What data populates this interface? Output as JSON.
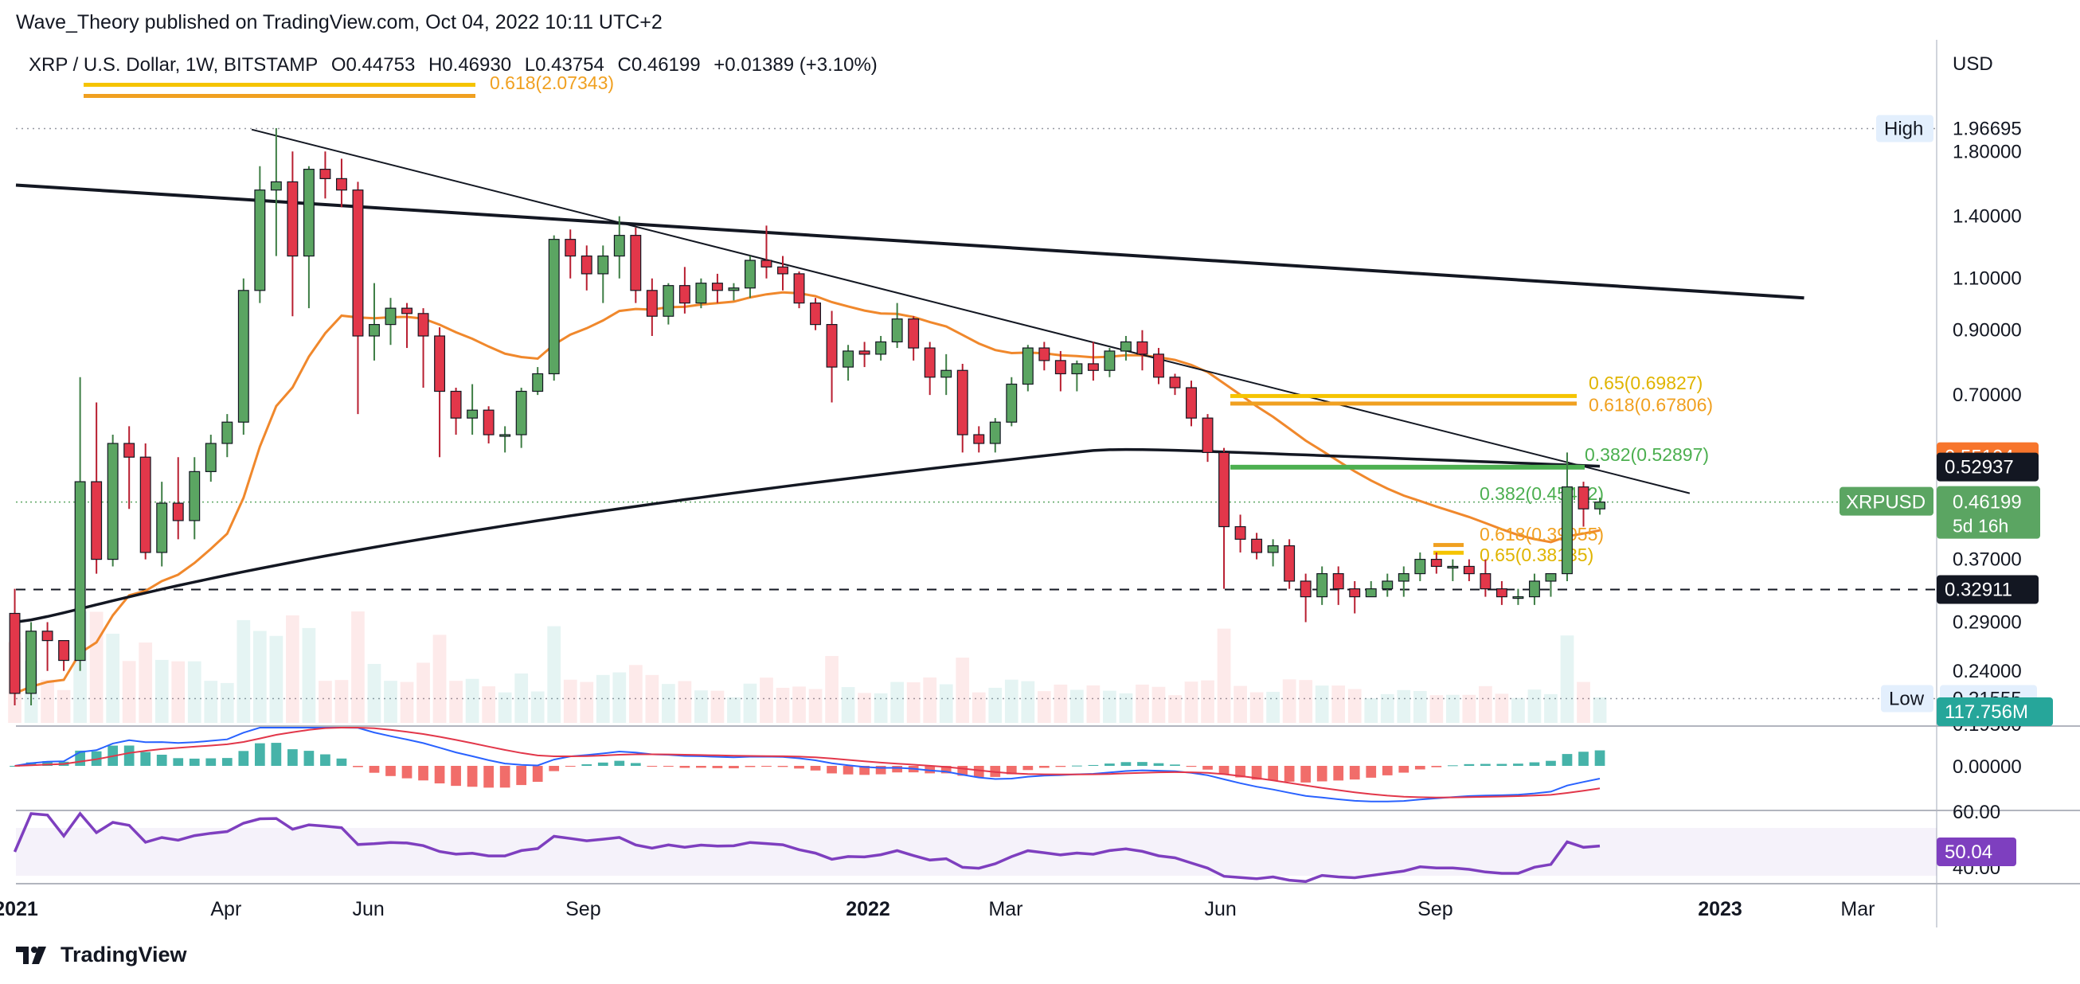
{
  "publisher": "Wave_Theory published on TradingView.com, Oct 04, 2022 10:11 UTC+2",
  "brand": "TradingView",
  "colors": {
    "up": "#5ba562",
    "down": "#e2374a",
    "ema": "#f0882c",
    "sma": "#131722",
    "fib_gold": "#f5c400",
    "fib_orange": "#f0a020",
    "fib_green": "#4caf50",
    "rsi": "#7e3fbf",
    "macd": "#2962ff",
    "signal": "#e2374a"
  },
  "chart_data": {
    "type": "candlestick",
    "symbol": "XRP / U.S. Dollar, 1W, BITSTAMP",
    "ohlc_header": {
      "o": "O0.44753",
      "h": "H0.46930",
      "l": "L0.43754",
      "c": "C0.46199",
      "chg": "+0.01389 (+3.10%)"
    },
    "currency": "USD",
    "scale": "log",
    "ylim": [
      0.195,
      2.25
    ],
    "price_ticks": [
      "1.80000",
      "1.40000",
      "1.10000",
      "0.90000",
      "0.70000",
      "0.37000",
      "0.29000",
      "0.24000",
      "0.19500"
    ],
    "time_labels": [
      {
        "label": "2021",
        "date": "2021-01-01"
      },
      {
        "label": "Apr",
        "date": "2021-04-01"
      },
      {
        "label": "Jun",
        "date": "2021-06-01"
      },
      {
        "label": "Sep",
        "date": "2021-09-01"
      },
      {
        "label": "2022",
        "date": "2022-01-01"
      },
      {
        "label": "Mar",
        "date": "2022-03-01"
      },
      {
        "label": "Jun",
        "date": "2022-06-01"
      },
      {
        "label": "Sep",
        "date": "2022-09-01"
      },
      {
        "label": "2023",
        "date": "2023-01-01"
      },
      {
        "label": "Mar",
        "date": "2023-03-01"
      }
    ],
    "start_week": "2020-12-28",
    "candles": [
      [
        0.3,
        0.33,
        0.21,
        0.22
      ],
      [
        0.22,
        0.29,
        0.21,
        0.28
      ],
      [
        0.28,
        0.29,
        0.24,
        0.27
      ],
      [
        0.27,
        0.27,
        0.24,
        0.25
      ],
      [
        0.25,
        0.75,
        0.24,
        0.5
      ],
      [
        0.5,
        0.68,
        0.35,
        0.37
      ],
      [
        0.37,
        0.6,
        0.36,
        0.58
      ],
      [
        0.58,
        0.62,
        0.45,
        0.55
      ],
      [
        0.55,
        0.58,
        0.37,
        0.38
      ],
      [
        0.38,
        0.5,
        0.36,
        0.46
      ],
      [
        0.46,
        0.55,
        0.4,
        0.43
      ],
      [
        0.43,
        0.55,
        0.4,
        0.52
      ],
      [
        0.52,
        0.6,
        0.5,
        0.58
      ],
      [
        0.58,
        0.65,
        0.55,
        0.63
      ],
      [
        0.63,
        1.1,
        0.6,
        1.05
      ],
      [
        1.05,
        1.7,
        1.0,
        1.55
      ],
      [
        1.55,
        1.97,
        1.2,
        1.6
      ],
      [
        1.6,
        1.8,
        0.95,
        1.2
      ],
      [
        1.2,
        1.7,
        0.98,
        1.68
      ],
      [
        1.68,
        1.8,
        1.5,
        1.62
      ],
      [
        1.62,
        1.75,
        1.45,
        1.55
      ],
      [
        1.55,
        1.6,
        0.65,
        0.88
      ],
      [
        0.88,
        1.08,
        0.8,
        0.92
      ],
      [
        0.92,
        1.02,
        0.85,
        0.98
      ],
      [
        0.98,
        1.0,
        0.84,
        0.96
      ],
      [
        0.96,
        0.98,
        0.72,
        0.88
      ],
      [
        0.88,
        0.91,
        0.55,
        0.71
      ],
      [
        0.71,
        0.72,
        0.6,
        0.64
      ],
      [
        0.64,
        0.73,
        0.6,
        0.66
      ],
      [
        0.66,
        0.67,
        0.58,
        0.6
      ],
      [
        0.6,
        0.62,
        0.56,
        0.6
      ],
      [
        0.6,
        0.72,
        0.57,
        0.71
      ],
      [
        0.71,
        0.78,
        0.7,
        0.76
      ],
      [
        0.76,
        1.3,
        0.74,
        1.28
      ],
      [
        1.28,
        1.33,
        1.1,
        1.2
      ],
      [
        1.2,
        1.25,
        1.05,
        1.12
      ],
      [
        1.12,
        1.25,
        1.0,
        1.2
      ],
      [
        1.2,
        1.4,
        1.1,
        1.3
      ],
      [
        1.3,
        1.34,
        1.0,
        1.05
      ],
      [
        1.05,
        1.1,
        0.88,
        0.95
      ],
      [
        0.95,
        1.08,
        0.92,
        1.07
      ],
      [
        1.07,
        1.15,
        0.96,
        1.0
      ],
      [
        1.0,
        1.1,
        0.98,
        1.08
      ],
      [
        1.08,
        1.12,
        1.0,
        1.05
      ],
      [
        1.05,
        1.08,
        1.01,
        1.06
      ],
      [
        1.06,
        1.2,
        1.02,
        1.18
      ],
      [
        1.18,
        1.35,
        1.1,
        1.15
      ],
      [
        1.15,
        1.2,
        1.05,
        1.12
      ],
      [
        1.12,
        1.13,
        0.98,
        1.0
      ],
      [
        1.0,
        1.02,
        0.9,
        0.92
      ],
      [
        0.92,
        0.97,
        0.68,
        0.78
      ],
      [
        0.78,
        0.85,
        0.74,
        0.83
      ],
      [
        0.83,
        0.86,
        0.78,
        0.82
      ],
      [
        0.82,
        0.88,
        0.8,
        0.86
      ],
      [
        0.86,
        1.0,
        0.84,
        0.94
      ],
      [
        0.94,
        0.95,
        0.8,
        0.84
      ],
      [
        0.84,
        0.86,
        0.7,
        0.75
      ],
      [
        0.75,
        0.82,
        0.7,
        0.77
      ],
      [
        0.77,
        0.79,
        0.56,
        0.6
      ],
      [
        0.6,
        0.62,
        0.56,
        0.58
      ],
      [
        0.58,
        0.64,
        0.56,
        0.63
      ],
      [
        0.63,
        0.75,
        0.62,
        0.73
      ],
      [
        0.73,
        0.85,
        0.71,
        0.84
      ],
      [
        0.84,
        0.86,
        0.77,
        0.8
      ],
      [
        0.8,
        0.83,
        0.71,
        0.76
      ],
      [
        0.76,
        0.8,
        0.71,
        0.79
      ],
      [
        0.79,
        0.86,
        0.74,
        0.77
      ],
      [
        0.77,
        0.84,
        0.75,
        0.83
      ],
      [
        0.83,
        0.88,
        0.8,
        0.86
      ],
      [
        0.86,
        0.9,
        0.77,
        0.82
      ],
      [
        0.82,
        0.84,
        0.73,
        0.75
      ],
      [
        0.75,
        0.76,
        0.7,
        0.72
      ],
      [
        0.72,
        0.74,
        0.62,
        0.64
      ],
      [
        0.64,
        0.65,
        0.54,
        0.56
      ],
      [
        0.56,
        0.57,
        0.33,
        0.42
      ],
      [
        0.42,
        0.44,
        0.38,
        0.4
      ],
      [
        0.4,
        0.41,
        0.37,
        0.38
      ],
      [
        0.38,
        0.4,
        0.36,
        0.39
      ],
      [
        0.39,
        0.4,
        0.33,
        0.34
      ],
      [
        0.34,
        0.35,
        0.29,
        0.32
      ],
      [
        0.32,
        0.36,
        0.31,
        0.35
      ],
      [
        0.35,
        0.36,
        0.31,
        0.33
      ],
      [
        0.33,
        0.34,
        0.3,
        0.32
      ],
      [
        0.32,
        0.34,
        0.32,
        0.33
      ],
      [
        0.33,
        0.35,
        0.32,
        0.34
      ],
      [
        0.34,
        0.36,
        0.32,
        0.35
      ],
      [
        0.35,
        0.38,
        0.34,
        0.37
      ],
      [
        0.37,
        0.38,
        0.35,
        0.36
      ],
      [
        0.36,
        0.37,
        0.34,
        0.36
      ],
      [
        0.36,
        0.37,
        0.34,
        0.35
      ],
      [
        0.35,
        0.37,
        0.32,
        0.33
      ],
      [
        0.33,
        0.34,
        0.31,
        0.32
      ],
      [
        0.32,
        0.33,
        0.31,
        0.32
      ],
      [
        0.32,
        0.35,
        0.31,
        0.34
      ],
      [
        0.34,
        0.35,
        0.32,
        0.35
      ],
      [
        0.35,
        0.56,
        0.34,
        0.49
      ],
      [
        0.49,
        0.5,
        0.42,
        0.45
      ],
      [
        0.45,
        0.47,
        0.44,
        0.462
      ]
    ],
    "candle_fields": [
      "open",
      "high",
      "low",
      "close"
    ],
    "indicators": {
      "ema": {
        "last": "0.55104"
      },
      "sma": {
        "last": "0.52937"
      },
      "volume": {
        "last": "117.756M"
      }
    },
    "trendlines": [
      {
        "name": "upper-trendline",
        "from": [
          "2021-01-01",
          1.58
        ],
        "to": [
          "2023-02-06",
          1.02
        ]
      },
      {
        "name": "descending-trendline",
        "from": [
          "2021-04-12",
          1.96
        ],
        "to": [
          "2022-12-19",
          0.478
        ]
      }
    ],
    "levels": {
      "high": {
        "label": "High",
        "value": "1.96695"
      },
      "low": {
        "label": "Low",
        "value": "0.21555"
      },
      "support": {
        "value": "0.32911"
      },
      "last": {
        "label": "XRPUSD",
        "value": "0.46199",
        "countdown": "5d 16h"
      }
    },
    "fib_labels": [
      {
        "text": "0.618(2.07343)",
        "value": 2.07343,
        "color": "orange"
      },
      {
        "text": "0.65(0.69827)",
        "value": 0.69827,
        "color": "gold"
      },
      {
        "text": "0.618(0.67806)",
        "value": 0.67806,
        "color": "orange"
      },
      {
        "text": "0.382(0.52897)",
        "value": 0.52897,
        "color": "green"
      },
      {
        "text": "0.382(0.45422)",
        "value": 0.45422,
        "color": "green"
      },
      {
        "text": "0.618(0.39055)",
        "value": 0.39055,
        "color": "orange"
      },
      {
        "text": "0.65(0.38135)",
        "value": 0.38135,
        "color": "gold"
      }
    ],
    "macd": {
      "zero_label": "0.00000"
    },
    "rsi": {
      "value": "50.04",
      "top_label": "60.00",
      "bottom_label": "40.00"
    }
  }
}
